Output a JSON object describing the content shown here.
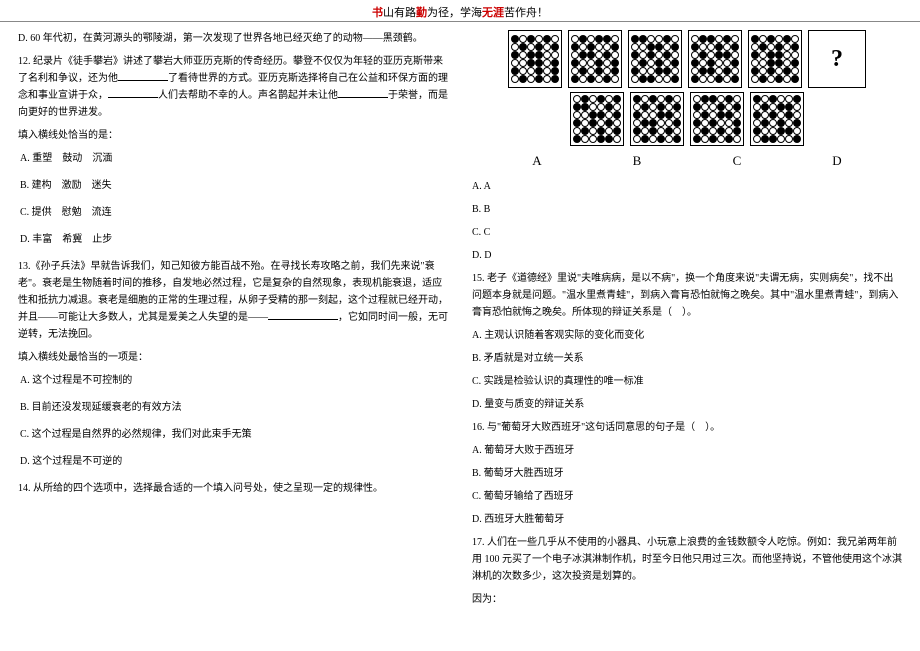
{
  "header": {
    "p1": "书",
    "p2": "山有路",
    "p3": "勤",
    "p4": "为径，学海",
    "p5": "无涯",
    "p6": "苦作舟！"
  },
  "left": {
    "q11d": "D. 60 年代初，在黄河源头的鄂陵湖，第一次发现了世界各地已经灭绝了的动物——黑颈鹤。",
    "q12_stem1": "12. 纪录片《徒手攀岩》讲述了攀岩大师亚历克斯的传奇经历。攀登不仅仅为年轻的亚历克斯带来了名利和争议，还为他",
    "q12_stem2": "了看待世界的方式。亚历克斯选择将自己在公益和环保方面的理念和事业宣讲于众，",
    "q12_stem3": "人们去帮助不幸的人。声名鹊起并未让他",
    "q12_stem4": "于荣誉，而是向更好的世界进发。",
    "q12_prompt": "填入横线处恰当的是：",
    "q12_a": "A. 重塑　鼓动　沉湎",
    "q12_b": "B. 建构　激励　迷失",
    "q12_c": "C. 提供　慰勉　流连",
    "q12_d": "D. 丰富　希冀　止步",
    "q13_stem1": "13.《孙子兵法》早就告诉我们，知己知彼方能百战不殆。在寻找长寿攻略之前，我们先来说\"衰老\"。衰老是生物随着时间的推移，自发地必然过程，它是复杂的自然现象，表现机能衰退，适应性和抵抗力减退。衰老是细胞的正常的生理过程，从卵子受精的那一刻起，这个过程就已经开动，并且——可能让大多数人，尤其是爱美之人失望的是——",
    "q13_stem2": "，它如同时间一般，无可逆转，无法挽回。",
    "q13_prompt": "填入横线处最恰当的一项是：",
    "q13_a": "A. 这个过程是不可控制的",
    "q13_b": "B. 目前还没发现延缓衰老的有效方法",
    "q13_c": "C. 这个过程是自然界的必然规律，我们对此束手无策",
    "q13_d": "D. 这个过程是不可逆的",
    "q14": "14. 从所给的四个选项中，选择最合适的一个填入问号处，使之呈现一定的规律性。"
  },
  "right": {
    "q14_aa": "A. A",
    "q14_bb": "B. B",
    "q14_cc": "C. C",
    "q14_dd": "D. D",
    "q15_stem": "15. 老子《道德经》里说\"夫唯病病，是以不病\"，换一个角度来说\"夫谓无病，实则病矣\"，找不出问题本身就是问题。\"温水里煮青蛙\"，到病入膏肓恐怕就悔之晚矣。其中\"温水里煮青蛙\"，到病入膏肓恐怕就悔之晚矣。所体现的辩证关系是（　）。",
    "q15_a": "A. 主观认识随着客观实际的变化而变化",
    "q15_b": "B. 矛盾就是对立统一关系",
    "q15_c": "C. 实践是检验认识的真理性的唯一标准",
    "q15_d": "D. 量变与质变的辩证关系",
    "q16_stem": "16. 与\"葡萄牙大败西班牙\"这句话同意思的句子是（　）。",
    "q16_a": "A. 葡萄牙大败于西班牙",
    "q16_b": "B. 葡萄牙大胜西班牙",
    "q16_c": "C. 葡萄牙输给了西班牙",
    "q16_d": "D. 西班牙大胜葡萄牙",
    "q17_stem": "17. 人们在一些几乎从不使用的小器具、小玩意上浪费的金钱数额令人吃惊。例如：我兄弟两年前用 100 元买了一个电子冰淇淋制作机，时至今日他只用过三次。而他坚持说，不管他使用这个冰淇淋机的次数多少，这次投资是划算的。",
    "q17_reason": "因为："
  },
  "labels": {
    "A": "A",
    "B": "B",
    "C": "C",
    "D": "D"
  },
  "qmark": "?",
  "grids": {
    "top": [
      "bwbwbw wbwbwb bwbbww wwbbwb bwwbwb wbwbwb",
      "wbwbbw bwbwwb wbbwbw bwwbwb wbwbwb bwbwbw",
      "bbwwbw wwbbwb bwbwbw wbwbwb bwwbbw wbbwwb",
      "wbbwbw bwwbwb wbwbbw bwbwwb wbbwbw bwwbwb",
      "bwbwbw wbwbwb bwbbww wwbbwb bwbwbw wbwbwb"
    ],
    "bottom": [
      "wbwbwb bbwwbw wwbbwb bwbwbw wbwbwb bwwbbw",
      "bwbwbw wbwbwb bwwbbw wbbwwb bwbwbw wbwbwb",
      "wbbwbw bwwbwb wbwbbw bwbwwb wbwbwb bwbwbw",
      "bwbwwb wbwbbw bwbwbw wbwbwb bwwbbw wbbwwb"
    ]
  }
}
